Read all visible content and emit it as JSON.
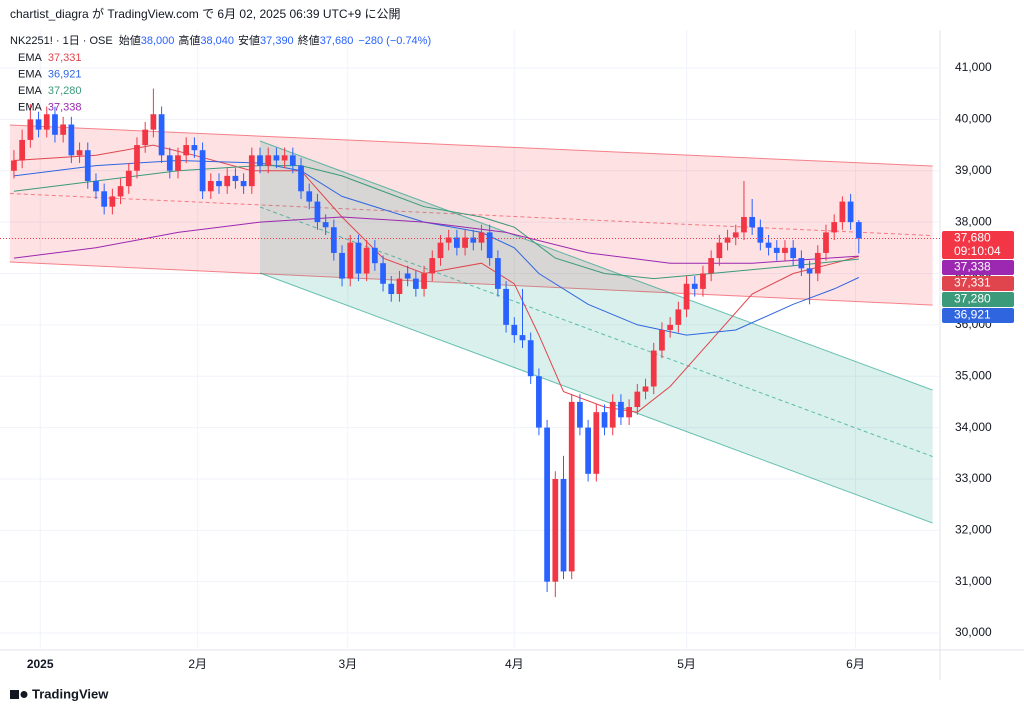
{
  "header": {
    "publisher": "chartist_diagra が TradingView.com で 6月 02, 2025 06:39 UTC+9 に公開"
  },
  "footer": {
    "brand": "TradingView"
  },
  "chart_data": {
    "type": "candlestick",
    "symbol": "NK2251! · 1日 · OSE",
    "ohlc_legend": [
      {
        "label": "始値",
        "value": "38,000"
      },
      {
        "label": "高値",
        "value": "38,040"
      },
      {
        "label": "安値",
        "value": "37,390"
      },
      {
        "label": "終値",
        "value": "37,680"
      }
    ],
    "change": "−280 (−0.74%)",
    "up_color": "#f23645",
    "down_color": "#2962ff",
    "ohlc": [
      [
        39000,
        39400,
        38850,
        39200
      ],
      [
        39200,
        39800,
        39050,
        39600
      ],
      [
        39600,
        40300,
        39450,
        40000
      ],
      [
        40000,
        40150,
        39650,
        39800
      ],
      [
        39800,
        40250,
        39650,
        40100
      ],
      [
        40100,
        40250,
        39550,
        39700
      ],
      [
        39700,
        40050,
        39550,
        39900
      ],
      [
        39900,
        40050,
        39150,
        39300
      ],
      [
        39300,
        39550,
        39150,
        39400
      ],
      [
        39400,
        39550,
        38650,
        38800
      ],
      [
        38800,
        38950,
        38450,
        38600
      ],
      [
        38600,
        38750,
        38150,
        38300
      ],
      [
        38300,
        38650,
        38150,
        38500
      ],
      [
        38500,
        38850,
        38350,
        38700
      ],
      [
        38700,
        39150,
        38550,
        39000
      ],
      [
        39000,
        39650,
        38850,
        39500
      ],
      [
        39500,
        39950,
        39350,
        39800
      ],
      [
        39800,
        40600,
        39650,
        40100
      ],
      [
        40100,
        40250,
        39150,
        39300
      ],
      [
        39300,
        39450,
        38850,
        39000
      ],
      [
        39000,
        39450,
        38850,
        39300
      ],
      [
        39300,
        39650,
        39150,
        39500
      ],
      [
        39500,
        39650,
        39250,
        39400
      ],
      [
        39400,
        39550,
        38450,
        38600
      ],
      [
        38600,
        38950,
        38450,
        38800
      ],
      [
        38800,
        38950,
        38550,
        38700
      ],
      [
        38700,
        39050,
        38550,
        38900
      ],
      [
        38900,
        39050,
        38650,
        38800
      ],
      [
        38800,
        38950,
        38550,
        38700
      ],
      [
        38700,
        39450,
        38550,
        39300
      ],
      [
        39300,
        39450,
        38950,
        39100
      ],
      [
        39100,
        39450,
        38950,
        39300
      ],
      [
        39300,
        39450,
        39050,
        39200
      ],
      [
        39200,
        39450,
        39050,
        39300
      ],
      [
        39300,
        39450,
        38950,
        39100
      ],
      [
        39100,
        39250,
        38450,
        38600
      ],
      [
        38600,
        38750,
        38250,
        38400
      ],
      [
        38400,
        38550,
        37850,
        38000
      ],
      [
        38000,
        38150,
        37750,
        37900
      ],
      [
        37900,
        38050,
        37250,
        37400
      ],
      [
        37400,
        37550,
        36750,
        36900
      ],
      [
        36900,
        37750,
        36750,
        37600
      ],
      [
        37600,
        37750,
        36850,
        37000
      ],
      [
        37000,
        37650,
        36850,
        37500
      ],
      [
        37500,
        37650,
        37050,
        37200
      ],
      [
        37200,
        37350,
        36650,
        36800
      ],
      [
        36800,
        36950,
        36450,
        36600
      ],
      [
        36600,
        37050,
        36450,
        36900
      ],
      [
        37000,
        37150,
        36750,
        36900
      ],
      [
        36900,
        37050,
        36550,
        36700
      ],
      [
        36700,
        37150,
        36550,
        37000
      ],
      [
        37000,
        37450,
        36850,
        37300
      ],
      [
        37300,
        37750,
        37150,
        37600
      ],
      [
        37600,
        37850,
        37450,
        37700
      ],
      [
        37700,
        37850,
        37350,
        37500
      ],
      [
        37500,
        37850,
        37350,
        37700
      ],
      [
        37700,
        37850,
        37450,
        37600
      ],
      [
        37600,
        37950,
        37450,
        37800
      ],
      [
        37800,
        37950,
        37150,
        37300
      ],
      [
        37300,
        37450,
        36550,
        36700
      ],
      [
        36700,
        36850,
        35850,
        36000
      ],
      [
        36000,
        36150,
        35650,
        35800
      ],
      [
        35800,
        36700,
        35550,
        35700
      ],
      [
        35700,
        35850,
        34850,
        35000
      ],
      [
        35000,
        35150,
        33850,
        34000
      ],
      [
        34000,
        34150,
        30800,
        31000
      ],
      [
        31000,
        33150,
        30700,
        33000
      ],
      [
        33000,
        33450,
        31050,
        31200
      ],
      [
        31200,
        34650,
        31050,
        34500
      ],
      [
        34500,
        34650,
        33850,
        34000
      ],
      [
        34000,
        34150,
        32950,
        33100
      ],
      [
        33100,
        34450,
        32950,
        34300
      ],
      [
        34300,
        34450,
        33850,
        34000
      ],
      [
        34000,
        34650,
        33850,
        34500
      ],
      [
        34500,
        34650,
        34050,
        34200
      ],
      [
        34200,
        34550,
        34050,
        34400
      ],
      [
        34400,
        34850,
        34250,
        34700
      ],
      [
        34700,
        34950,
        34550,
        34800
      ],
      [
        34800,
        35650,
        34650,
        35500
      ],
      [
        35500,
        36050,
        35350,
        35900
      ],
      [
        35900,
        36150,
        35750,
        36000
      ],
      [
        36000,
        36450,
        35850,
        36300
      ],
      [
        36300,
        36950,
        36150,
        36800
      ],
      [
        36800,
        36950,
        36550,
        36700
      ],
      [
        36700,
        37150,
        36550,
        37000
      ],
      [
        37000,
        37450,
        36850,
        37300
      ],
      [
        37300,
        37750,
        37150,
        37600
      ],
      [
        37600,
        37850,
        37450,
        37700
      ],
      [
        37700,
        37950,
        37550,
        37800
      ],
      [
        37800,
        38800,
        37650,
        38100
      ],
      [
        38100,
        38450,
        37750,
        37900
      ],
      [
        37900,
        38050,
        37450,
        37600
      ],
      [
        37600,
        37750,
        37350,
        37500
      ],
      [
        37500,
        37650,
        37250,
        37400
      ],
      [
        37400,
        37650,
        37250,
        37500
      ],
      [
        37500,
        37650,
        37150,
        37300
      ],
      [
        37300,
        37450,
        36950,
        37100
      ],
      [
        37100,
        37250,
        36400,
        37000
      ],
      [
        37000,
        37550,
        36850,
        37400
      ],
      [
        37400,
        37950,
        37250,
        37800
      ],
      [
        37800,
        38150,
        37650,
        38000
      ],
      [
        38000,
        38500,
        37850,
        38400
      ],
      [
        38400,
        38550,
        37850,
        38000
      ],
      [
        38000,
        38040,
        37390,
        37680
      ]
    ],
    "xlim": [
      -1.7,
      112.9
    ],
    "xticks": [
      {
        "value": 3.2,
        "label": "2025"
      },
      {
        "value": 22.4,
        "label": "2月"
      },
      {
        "value": 40.7,
        "label": "3月"
      },
      {
        "value": 61,
        "label": "4月"
      },
      {
        "value": 82,
        "label": "5月"
      },
      {
        "value": 102.6,
        "label": "6月"
      }
    ],
    "ylim": [
      29670,
      41740
    ],
    "yticks": [
      {
        "value": 30000,
        "label": "30,000"
      },
      {
        "value": 31000,
        "label": "31,000"
      },
      {
        "value": 32000,
        "label": "32,000"
      },
      {
        "value": 33000,
        "label": "33,000"
      },
      {
        "value": 34000,
        "label": "34,000"
      },
      {
        "value": 35000,
        "label": "35,000"
      },
      {
        "value": 36000,
        "label": "36,000"
      },
      {
        "value": 37000,
        "label": "37,000"
      },
      {
        "value": 38000,
        "label": "38,000"
      },
      {
        "value": 39000,
        "label": "39,000"
      },
      {
        "value": 40000,
        "label": "40,000"
      },
      {
        "value": 41000,
        "label": "41,000"
      }
    ],
    "grid": true,
    "last_price": {
      "value": 37680,
      "label": "37,680"
    },
    "countdown": "09:10:04",
    "ema": [
      {
        "name": "EMA",
        "color": "#e0454d",
        "last": 37331,
        "last_label": "37,331",
        "x": [
          0,
          10,
          17,
          22,
          29,
          35,
          40,
          45,
          50,
          57,
          61,
          64,
          67,
          72,
          76,
          80,
          85,
          90,
          95,
          100,
          103
        ],
        "values": [
          39200,
          39300,
          39500,
          39300,
          39000,
          39000,
          38100,
          37300,
          37000,
          37200,
          36800,
          35800,
          34700,
          34400,
          34300,
          34800,
          35700,
          36600,
          37000,
          37200,
          37331
        ]
      },
      {
        "name": "EMA",
        "color": "#2f66e0",
        "last": 36921,
        "last_label": "36,921",
        "x": [
          0,
          10,
          20,
          30,
          35,
          40,
          50,
          57,
          61,
          64,
          70,
          76,
          82,
          88,
          95,
          100,
          103
        ],
        "values": [
          38900,
          39100,
          39200,
          39150,
          39000,
          38500,
          38000,
          37800,
          37500,
          37000,
          36400,
          36000,
          35800,
          35900,
          36400,
          36700,
          36921
        ]
      },
      {
        "name": "EMA",
        "color": "#3a9a7a",
        "last": 37280,
        "last_label": "37,280",
        "x": [
          0,
          10,
          20,
          30,
          35,
          40,
          50,
          57,
          61,
          66,
          72,
          78,
          85,
          95,
          103
        ],
        "values": [
          38600,
          38800,
          39000,
          39100,
          39100,
          38900,
          38300,
          38100,
          37900,
          37300,
          37000,
          36900,
          37000,
          37150,
          37280
        ]
      },
      {
        "name": "EMA",
        "color": "#9c27b0",
        "last": 37338,
        "last_label": "37,338",
        "x": [
          0,
          10,
          20,
          30,
          40,
          50,
          60,
          70,
          80,
          90,
          103
        ],
        "values": [
          37300,
          37500,
          37800,
          38000,
          38100,
          38000,
          37800,
          37400,
          37200,
          37200,
          37338
        ]
      }
    ],
    "channels": [
      {
        "color": "#f23645",
        "x": [
          -0.5,
          112
        ],
        "upper": [
          39890,
          39092
        ],
        "middle": [
          38557,
          37738
        ],
        "lower": [
          37223,
          36385
        ]
      },
      {
        "color": "#089981",
        "x": [
          30,
          112
        ],
        "upper": [
          39579,
          34731
        ],
        "middle": [
          38294,
          33436
        ],
        "lower": [
          37009,
          32141
        ]
      }
    ]
  }
}
